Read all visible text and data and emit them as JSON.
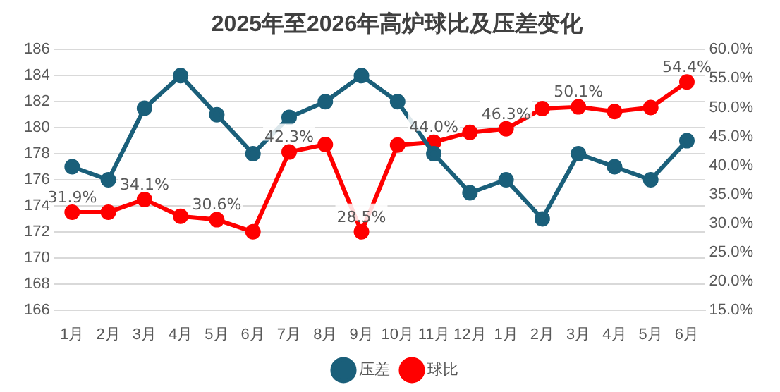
{
  "chart_data": {
    "type": "line",
    "title": "2025年至2026年高炉球比及压差变化",
    "categories": [
      "1月",
      "2月",
      "3月",
      "4月",
      "5月",
      "6月",
      "7月",
      "8月",
      "9月",
      "10月",
      "11月",
      "12月",
      "1月",
      "2月",
      "3月",
      "4月",
      "5月",
      "6月"
    ],
    "series": [
      {
        "name": "压差",
        "color": "#1a5f7a",
        "values": [
          177,
          176,
          181.5,
          184,
          181,
          178,
          180.8,
          182,
          184,
          182,
          178,
          175,
          176,
          173,
          178,
          177,
          176,
          179
        ]
      },
      {
        "name": "球比",
        "color": "#ff0000",
        "axis": "y2",
        "values": [
          31.9,
          31.9,
          34.1,
          31.2,
          30.6,
          28.5,
          42.3,
          43.6,
          28.5,
          43.5,
          44.0,
          45.7,
          46.3,
          49.8,
          50.1,
          49.3,
          50.0,
          54.4
        ],
        "value_labels": [
          "31.9%",
          null,
          "34.1%",
          null,
          "30.6%",
          null,
          "42.3%",
          null,
          "28.5%",
          null,
          "44.0%",
          null,
          "46.3%",
          null,
          "50.1%",
          null,
          null,
          "54.4%"
        ]
      }
    ],
    "ylim": [
      166,
      186
    ],
    "yticks": [
      166,
      168,
      170,
      172,
      174,
      176,
      178,
      180,
      182,
      184,
      186
    ],
    "y2lim": [
      15,
      60
    ],
    "y2ticks": [
      {
        "value": 15,
        "label": "15.0%"
      },
      {
        "value": 20,
        "label": "20.0%"
      },
      {
        "value": 25,
        "label": "25.0%"
      },
      {
        "value": 30,
        "label": "30.0%"
      },
      {
        "value": 35,
        "label": "35.0%"
      },
      {
        "value": 40,
        "label": "40.0%"
      },
      {
        "value": 45,
        "label": "45.0%"
      },
      {
        "value": 50,
        "label": "50.0%"
      },
      {
        "value": 55,
        "label": "55.0%"
      },
      {
        "value": 60,
        "label": "60.0%"
      }
    ],
    "grid": "y",
    "legend": "bottom",
    "marker": "circle",
    "line_style": "solid"
  }
}
